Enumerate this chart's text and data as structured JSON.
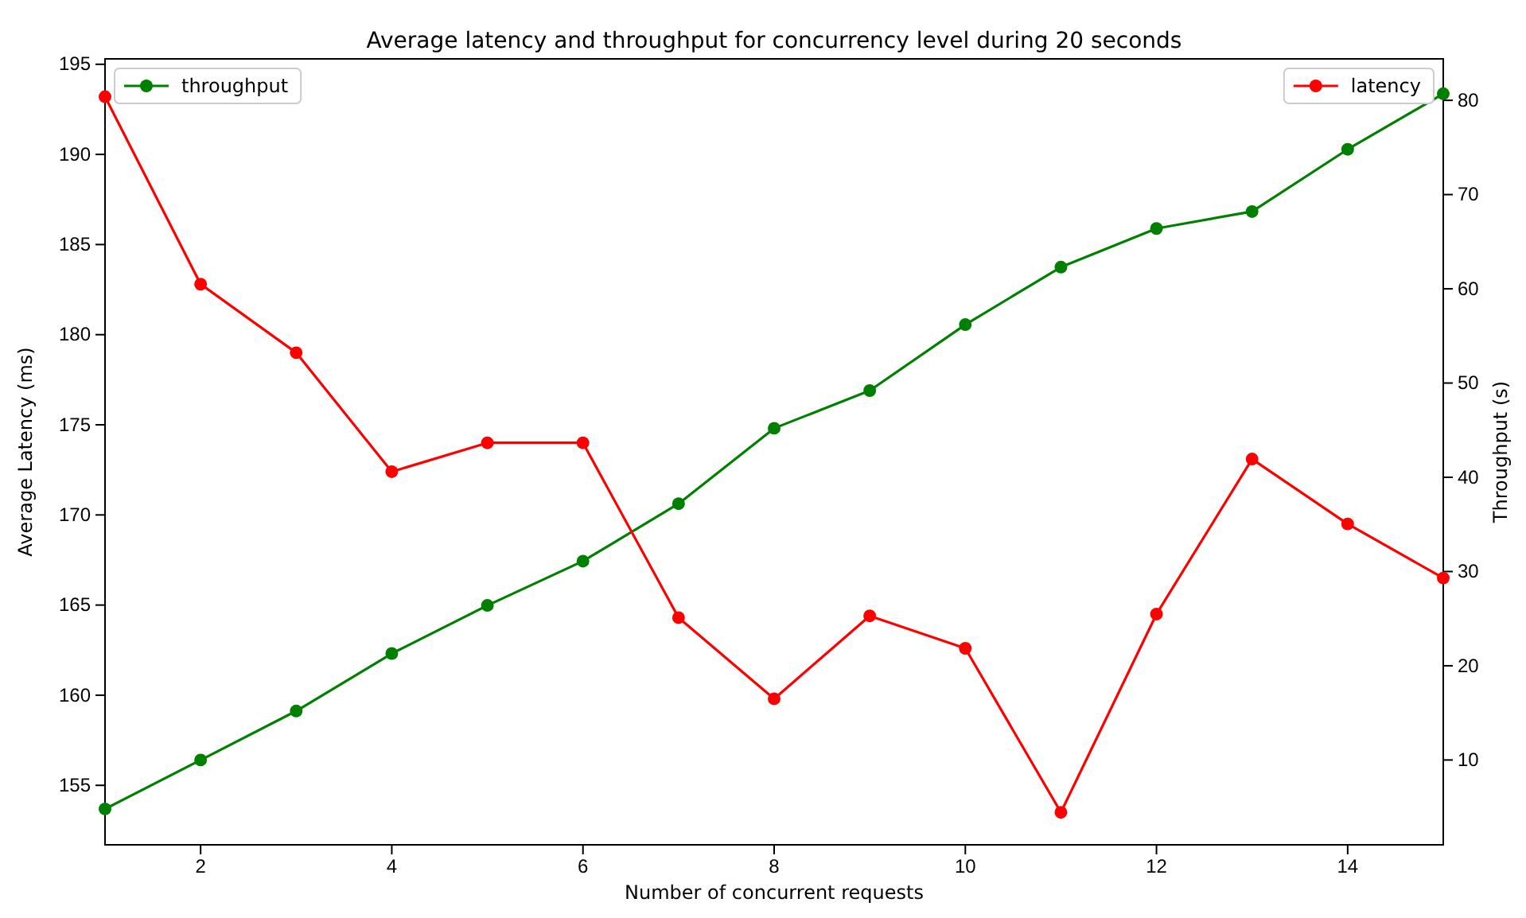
{
  "chart_data": {
    "type": "line",
    "title": "Average latency and throughput for concurrency level during 20 seconds",
    "xlabel": "Number of concurrent requests",
    "ylabel": "Average Latency (ms)",
    "y2label": "Throughput (s)",
    "x": [
      1,
      2,
      3,
      4,
      5,
      6,
      7,
      8,
      9,
      10,
      11,
      12,
      13,
      14,
      15
    ],
    "xlim": [
      1,
      15
    ],
    "xticks": [
      2,
      4,
      6,
      8,
      10,
      12,
      14
    ],
    "ylim": [
      151.7,
      195.3
    ],
    "yticks": [
      155,
      160,
      165,
      170,
      175,
      180,
      185,
      190,
      195
    ],
    "y2lim": [
      1,
      84.4
    ],
    "y2ticks": [
      10,
      20,
      30,
      40,
      50,
      60,
      70,
      80
    ],
    "marker": "circle",
    "legend": "top",
    "line_style": "solid",
    "grid": false,
    "series": [
      {
        "name": "throughput",
        "color": "#008000",
        "axis": "y2",
        "values": [
          4.8,
          10.0,
          15.2,
          21.3,
          26.4,
          31.1,
          37.2,
          45.2,
          49.2,
          56.2,
          62.3,
          66.4,
          68.2,
          74.8,
          80.7
        ]
      },
      {
        "name": "latency",
        "color": "#ff0000",
        "axis": "y",
        "values": [
          193.2,
          182.8,
          179.0,
          172.4,
          174.0,
          174.0,
          164.3,
          159.8,
          164.4,
          162.6,
          153.5,
          164.5,
          173.1,
          169.5,
          166.5
        ]
      }
    ]
  }
}
